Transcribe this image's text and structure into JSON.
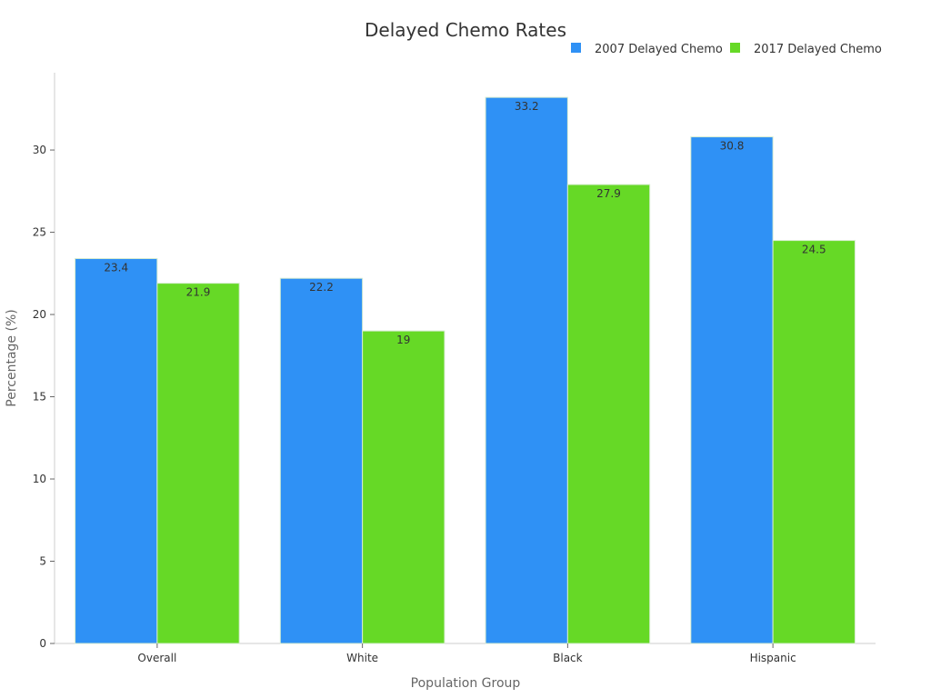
{
  "chart_data": {
    "type": "bar",
    "title": "Delayed Chemo Rates",
    "xlabel": "Population Group",
    "ylabel": "Percentage (%)",
    "categories": [
      "Overall",
      "White",
      "Black",
      "Hispanic"
    ],
    "series": [
      {
        "name": "2007 Delayed Chemo",
        "color": "#2f91f5",
        "values": [
          23.4,
          22.2,
          33.2,
          30.8
        ]
      },
      {
        "name": "2017 Delayed Chemo",
        "color": "#66d926",
        "values": [
          21.9,
          19,
          27.9,
          24.5
        ]
      }
    ],
    "ylim": [
      0,
      34.7
    ],
    "yticks": [
      0,
      5,
      10,
      15,
      20,
      25,
      30
    ],
    "grid": false,
    "legend_position": "top-right"
  }
}
